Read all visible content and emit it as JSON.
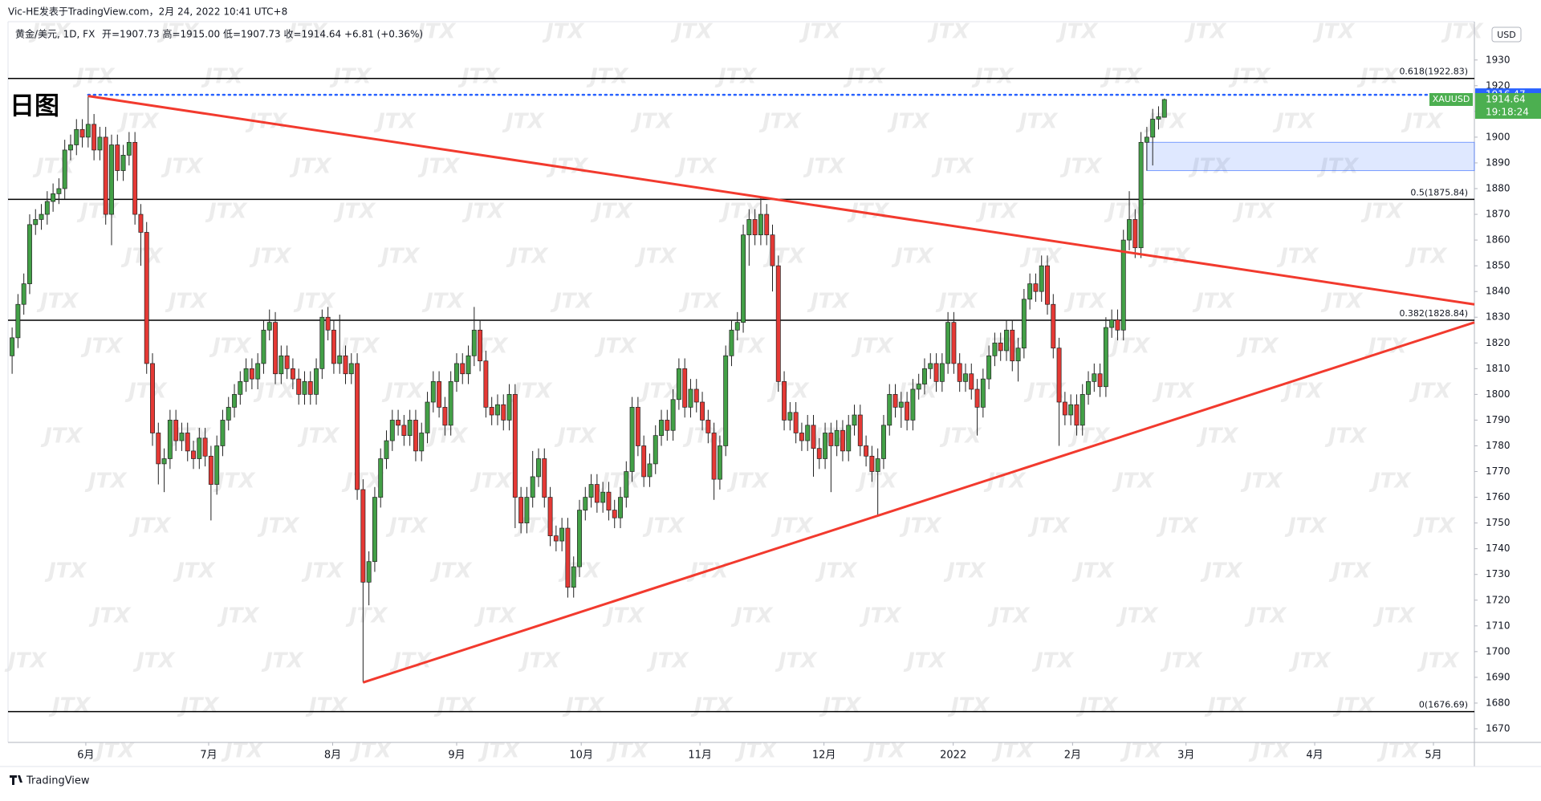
{
  "header": {
    "author": "Vic-HE发表于TradingView.com，2月 24, 2022 10:41 UTC+8",
    "symbol": "黄金/美元, 1D, FX",
    "quote": "开=1907.73 高=1915.00 低=1907.73 收=1914.64 +6.81 (+0.36%)",
    "label": "日图",
    "footer": "TradingView",
    "watermark": "JTX"
  },
  "chart_data": {
    "type": "candlestick",
    "up_color": "#43a047",
    "down_color": "#e53935",
    "xlim": [
      -0.7,
      250
    ],
    "ylim": [
      1664.7,
      1944.9
    ],
    "yticks": [
      1670,
      1680,
      1690,
      1700,
      1710,
      1720,
      1730,
      1740,
      1750,
      1760,
      1770,
      1780,
      1790,
      1800,
      1810,
      1820,
      1830,
      1840,
      1850,
      1860,
      1870,
      1880,
      1890,
      1900,
      1910,
      1920,
      1930
    ],
    "xticks": [
      {
        "value": 12.6,
        "label": "6月"
      },
      {
        "value": 33.6,
        "label": "7月"
      },
      {
        "value": 54.8,
        "label": "8月"
      },
      {
        "value": 76.0,
        "label": "9月"
      },
      {
        "value": 97.3,
        "label": "10月"
      },
      {
        "value": 117.6,
        "label": "11月"
      },
      {
        "value": 138.8,
        "label": "12月"
      },
      {
        "value": 160.9,
        "label": "2022"
      },
      {
        "value": 181.3,
        "label": "2月"
      },
      {
        "value": 200.7,
        "label": "3月"
      },
      {
        "value": 222.7,
        "label": "4月"
      },
      {
        "value": 243.0,
        "label": "5月"
      }
    ],
    "currency": "USD",
    "levels": [
      {
        "label": "0.618(1922.83)",
        "value": 1922.83
      },
      {
        "label": "0.5(1875.84)",
        "value": 1875.84
      },
      {
        "label": "0.382(1828.84)",
        "value": 1828.84
      },
      {
        "label": "0(1676.69)",
        "value": 1676.69
      }
    ],
    "trendlines": [
      {
        "x": [
          13,
          250
        ],
        "y": [
          1916,
          1835
        ],
        "color": "#f23a2e"
      },
      {
        "x": [
          60,
          250
        ],
        "y": [
          1688,
          1828
        ],
        "color": "#f23a2e"
      }
    ],
    "zone": {
      "x": [
        194,
        250
      ],
      "y": [
        1887,
        1898
      ],
      "color": "#2962ff"
    },
    "dotted_line": {
      "x": 13,
      "value": 1916.47,
      "color": "#2962ff"
    },
    "last_price": {
      "value": 1914.64,
      "symbol": "XAUUSD",
      "countdown": "19:18:24",
      "color": "#4caf50"
    },
    "ohlc": [
      [
        1815,
        1826,
        1808,
        1822
      ],
      [
        1822,
        1839,
        1818,
        1835
      ],
      [
        1835,
        1847,
        1831,
        1843
      ],
      [
        1843,
        1870,
        1839,
        1866
      ],
      [
        1866,
        1872,
        1862,
        1868
      ],
      [
        1868,
        1874,
        1864,
        1870
      ],
      [
        1870,
        1879,
        1866,
        1875
      ],
      [
        1875,
        1882,
        1871,
        1878
      ],
      [
        1878,
        1884,
        1874,
        1880
      ],
      [
        1880,
        1899,
        1876,
        1895
      ],
      [
        1895,
        1901,
        1891,
        1897
      ],
      [
        1897,
        1907,
        1893,
        1903
      ],
      [
        1903,
        1907,
        1896,
        1900
      ],
      [
        1900,
        1916,
        1896,
        1905
      ],
      [
        1905,
        1909,
        1891,
        1895
      ],
      [
        1895,
        1904,
        1891,
        1900
      ],
      [
        1900,
        1904,
        1866,
        1870
      ],
      [
        1870,
        1901,
        1858,
        1897
      ],
      [
        1897,
        1901,
        1883,
        1887
      ],
      [
        1887,
        1897,
        1883,
        1893
      ],
      [
        1893,
        1902,
        1889,
        1898
      ],
      [
        1898,
        1902,
        1866,
        1870
      ],
      [
        1870,
        1874,
        1850,
        1863
      ],
      [
        1863,
        1867,
        1808,
        1812
      ],
      [
        1812,
        1816,
        1780,
        1785
      ],
      [
        1785,
        1789,
        1765,
        1773
      ],
      [
        1773,
        1779,
        1762,
        1775
      ],
      [
        1775,
        1794,
        1771,
        1790
      ],
      [
        1790,
        1794,
        1778,
        1782
      ],
      [
        1782,
        1789,
        1778,
        1785
      ],
      [
        1785,
        1789,
        1774,
        1778
      ],
      [
        1778,
        1782,
        1771,
        1775
      ],
      [
        1775,
        1787,
        1771,
        1783
      ],
      [
        1783,
        1787,
        1772,
        1776
      ],
      [
        1776,
        1780,
        1751,
        1765
      ],
      [
        1765,
        1784,
        1761,
        1780
      ],
      [
        1780,
        1794,
        1776,
        1790
      ],
      [
        1790,
        1799,
        1786,
        1795
      ],
      [
        1795,
        1804,
        1791,
        1800
      ],
      [
        1800,
        1809,
        1796,
        1805
      ],
      [
        1805,
        1814,
        1801,
        1810
      ],
      [
        1810,
        1814,
        1802,
        1806
      ],
      [
        1806,
        1816,
        1802,
        1812
      ],
      [
        1812,
        1829,
        1808,
        1825
      ],
      [
        1825,
        1833,
        1821,
        1828
      ],
      [
        1828,
        1832,
        1804,
        1808
      ],
      [
        1808,
        1819,
        1804,
        1815
      ],
      [
        1815,
        1819,
        1806,
        1810
      ],
      [
        1810,
        1814,
        1802,
        1806
      ],
      [
        1806,
        1810,
        1796,
        1800
      ],
      [
        1800,
        1809,
        1796,
        1805
      ],
      [
        1805,
        1809,
        1796,
        1800
      ],
      [
        1800,
        1814,
        1796,
        1810
      ],
      [
        1810,
        1833,
        1806,
        1830
      ],
      [
        1830,
        1834,
        1821,
        1825
      ],
      [
        1825,
        1829,
        1808,
        1812
      ],
      [
        1812,
        1831,
        1808,
        1815
      ],
      [
        1815,
        1819,
        1804,
        1808
      ],
      [
        1808,
        1816,
        1804,
        1812
      ],
      [
        1812,
        1816,
        1759,
        1763
      ],
      [
        1763,
        1767,
        1688,
        1727
      ],
      [
        1727,
        1739,
        1718,
        1735
      ],
      [
        1735,
        1764,
        1731,
        1760
      ],
      [
        1760,
        1779,
        1756,
        1775
      ],
      [
        1775,
        1786,
        1771,
        1782
      ],
      [
        1782,
        1794,
        1778,
        1790
      ],
      [
        1790,
        1794,
        1784,
        1788
      ],
      [
        1788,
        1792,
        1780,
        1784
      ],
      [
        1784,
        1794,
        1780,
        1790
      ],
      [
        1790,
        1794,
        1774,
        1778
      ],
      [
        1778,
        1789,
        1774,
        1785
      ],
      [
        1785,
        1801,
        1781,
        1797
      ],
      [
        1797,
        1809,
        1793,
        1805
      ],
      [
        1805,
        1809,
        1791,
        1795
      ],
      [
        1795,
        1799,
        1784,
        1788
      ],
      [
        1788,
        1809,
        1784,
        1805
      ],
      [
        1805,
        1816,
        1801,
        1812
      ],
      [
        1812,
        1816,
        1804,
        1808
      ],
      [
        1808,
        1819,
        1804,
        1815
      ],
      [
        1815,
        1834,
        1811,
        1825
      ],
      [
        1825,
        1829,
        1809,
        1813
      ],
      [
        1813,
        1817,
        1791,
        1795
      ],
      [
        1795,
        1799,
        1788,
        1792
      ],
      [
        1792,
        1800,
        1788,
        1796
      ],
      [
        1796,
        1800,
        1786,
        1790
      ],
      [
        1790,
        1804,
        1786,
        1800
      ],
      [
        1800,
        1804,
        1748,
        1760
      ],
      [
        1760,
        1764,
        1746,
        1750
      ],
      [
        1750,
        1764,
        1746,
        1760
      ],
      [
        1760,
        1778,
        1756,
        1768
      ],
      [
        1768,
        1779,
        1764,
        1775
      ],
      [
        1775,
        1779,
        1756,
        1760
      ],
      [
        1760,
        1764,
        1741,
        1745
      ],
      [
        1745,
        1749,
        1739,
        1743
      ],
      [
        1743,
        1752,
        1739,
        1748
      ],
      [
        1748,
        1752,
        1721,
        1725
      ],
      [
        1725,
        1737,
        1721,
        1733
      ],
      [
        1733,
        1759,
        1729,
        1755
      ],
      [
        1755,
        1764,
        1751,
        1760
      ],
      [
        1760,
        1769,
        1756,
        1765
      ],
      [
        1765,
        1769,
        1754,
        1758
      ],
      [
        1758,
        1766,
        1754,
        1762
      ],
      [
        1762,
        1766,
        1751,
        1755
      ],
      [
        1755,
        1759,
        1748,
        1752
      ],
      [
        1752,
        1764,
        1748,
        1760
      ],
      [
        1760,
        1774,
        1756,
        1770
      ],
      [
        1770,
        1799,
        1766,
        1795
      ],
      [
        1795,
        1799,
        1776,
        1780
      ],
      [
        1780,
        1784,
        1764,
        1768
      ],
      [
        1768,
        1777,
        1764,
        1773
      ],
      [
        1773,
        1788,
        1769,
        1784
      ],
      [
        1784,
        1794,
        1780,
        1790
      ],
      [
        1790,
        1794,
        1782,
        1786
      ],
      [
        1786,
        1802,
        1782,
        1798
      ],
      [
        1798,
        1814,
        1794,
        1810
      ],
      [
        1810,
        1814,
        1791,
        1795
      ],
      [
        1795,
        1806,
        1791,
        1802
      ],
      [
        1802,
        1806,
        1793,
        1797
      ],
      [
        1797,
        1801,
        1786,
        1790
      ],
      [
        1790,
        1794,
        1781,
        1785
      ],
      [
        1785,
        1789,
        1759,
        1767
      ],
      [
        1767,
        1784,
        1763,
        1780
      ],
      [
        1780,
        1819,
        1776,
        1815
      ],
      [
        1815,
        1829,
        1811,
        1825
      ],
      [
        1825,
        1832,
        1821,
        1828
      ],
      [
        1828,
        1866,
        1824,
        1862
      ],
      [
        1862,
        1872,
        1850,
        1868
      ],
      [
        1868,
        1872,
        1858,
        1862
      ],
      [
        1862,
        1877,
        1858,
        1870
      ],
      [
        1870,
        1874,
        1858,
        1862
      ],
      [
        1862,
        1866,
        1840,
        1850
      ],
      [
        1850,
        1854,
        1801,
        1805
      ],
      [
        1805,
        1809,
        1786,
        1790
      ],
      [
        1790,
        1797,
        1786,
        1793
      ],
      [
        1793,
        1797,
        1781,
        1785
      ],
      [
        1785,
        1789,
        1778,
        1782
      ],
      [
        1782,
        1792,
        1778,
        1788
      ],
      [
        1788,
        1792,
        1768,
        1779
      ],
      [
        1779,
        1783,
        1771,
        1775
      ],
      [
        1775,
        1789,
        1771,
        1785
      ],
      [
        1785,
        1789,
        1762,
        1780
      ],
      [
        1780,
        1790,
        1776,
        1786
      ],
      [
        1786,
        1790,
        1774,
        1778
      ],
      [
        1778,
        1792,
        1774,
        1788
      ],
      [
        1788,
        1796,
        1784,
        1792
      ],
      [
        1792,
        1796,
        1776,
        1780
      ],
      [
        1780,
        1784,
        1772,
        1776
      ],
      [
        1776,
        1780,
        1766,
        1770
      ],
      [
        1770,
        1779,
        1753,
        1775
      ],
      [
        1775,
        1792,
        1771,
        1788
      ],
      [
        1788,
        1804,
        1784,
        1800
      ],
      [
        1800,
        1804,
        1791,
        1795
      ],
      [
        1795,
        1801,
        1787,
        1797
      ],
      [
        1797,
        1801,
        1786,
        1790
      ],
      [
        1790,
        1806,
        1786,
        1802
      ],
      [
        1802,
        1808,
        1798,
        1804
      ],
      [
        1804,
        1814,
        1800,
        1810
      ],
      [
        1810,
        1816,
        1806,
        1812
      ],
      [
        1812,
        1816,
        1801,
        1805
      ],
      [
        1805,
        1816,
        1801,
        1812
      ],
      [
        1812,
        1832,
        1808,
        1828
      ],
      [
        1828,
        1832,
        1808,
        1812
      ],
      [
        1812,
        1816,
        1801,
        1805
      ],
      [
        1805,
        1812,
        1801,
        1808
      ],
      [
        1808,
        1812,
        1798,
        1802
      ],
      [
        1802,
        1806,
        1784,
        1795
      ],
      [
        1795,
        1810,
        1791,
        1806
      ],
      [
        1806,
        1819,
        1802,
        1815
      ],
      [
        1815,
        1824,
        1811,
        1820
      ],
      [
        1820,
        1824,
        1813,
        1817
      ],
      [
        1817,
        1829,
        1813,
        1825
      ],
      [
        1825,
        1829,
        1809,
        1813
      ],
      [
        1813,
        1822,
        1805,
        1818
      ],
      [
        1818,
        1841,
        1814,
        1837
      ],
      [
        1837,
        1847,
        1833,
        1843
      ],
      [
        1843,
        1847,
        1836,
        1840
      ],
      [
        1840,
        1854,
        1836,
        1850
      ],
      [
        1850,
        1854,
        1831,
        1835
      ],
      [
        1835,
        1839,
        1814,
        1818
      ],
      [
        1818,
        1822,
        1780,
        1797
      ],
      [
        1797,
        1801,
        1788,
        1792
      ],
      [
        1792,
        1800,
        1788,
        1796
      ],
      [
        1796,
        1800,
        1784,
        1788
      ],
      [
        1788,
        1804,
        1784,
        1800
      ],
      [
        1800,
        1809,
        1796,
        1805
      ],
      [
        1805,
        1812,
        1801,
        1808
      ],
      [
        1808,
        1812,
        1799,
        1803
      ],
      [
        1803,
        1830,
        1799,
        1826
      ],
      [
        1826,
        1833,
        1822,
        1829
      ],
      [
        1829,
        1833,
        1821,
        1825
      ],
      [
        1825,
        1864,
        1821,
        1860
      ],
      [
        1860,
        1879,
        1856,
        1868
      ],
      [
        1868,
        1872,
        1853,
        1857
      ],
      [
        1857,
        1902,
        1853,
        1898
      ],
      [
        1898,
        1904,
        1887,
        1900
      ],
      [
        1900,
        1911,
        1889,
        1907
      ],
      [
        1907,
        1912,
        1903,
        1908
      ],
      [
        1907.73,
        1915,
        1907.73,
        1914.64
      ]
    ]
  }
}
